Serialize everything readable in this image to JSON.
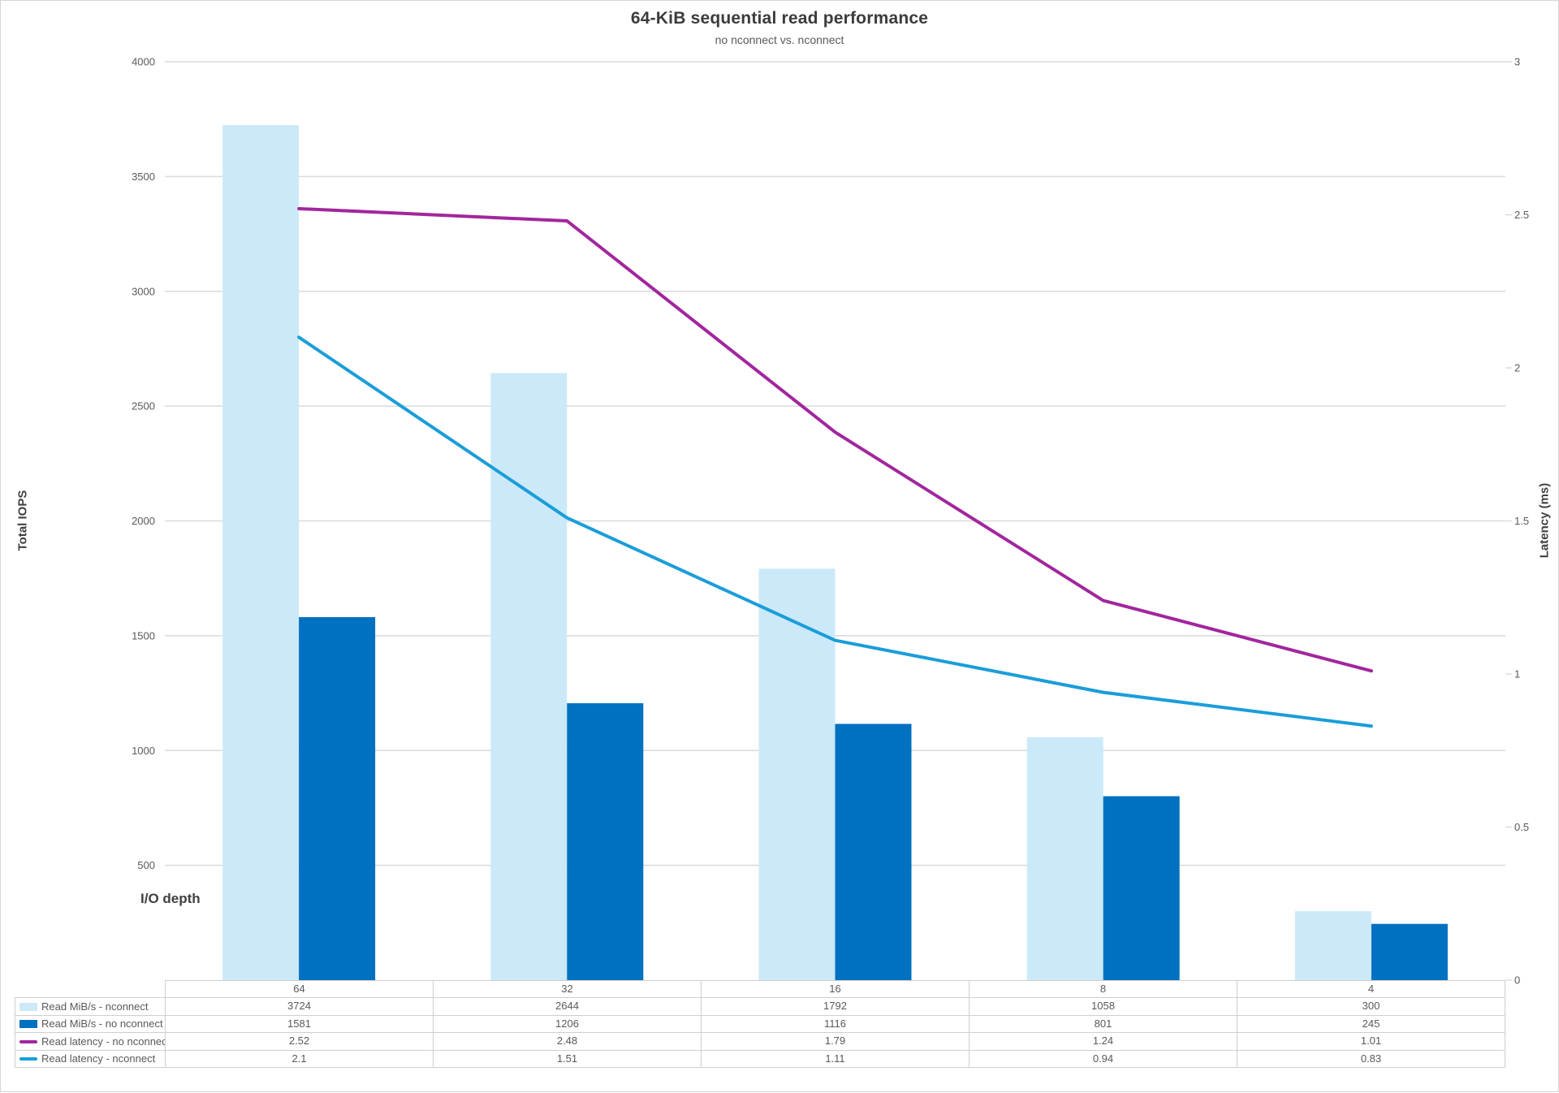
{
  "chart_data": {
    "type": "bar+line-combo",
    "title": "64-KiB sequential read performance",
    "subtitle": "no nconnect vs. nconnect",
    "xlabel": "I/O depth",
    "ylabel_left": "Total IOPS",
    "ylabel_right": "Latency (ms)",
    "categories": [
      "64",
      "32",
      "16",
      "8",
      "4"
    ],
    "series": [
      {
        "name": "Read MiB/s - nconnect",
        "type": "bar",
        "axis": "left",
        "color": "#CBE9F9",
        "values": [
          3724,
          2644,
          1792,
          1058,
          300
        ]
      },
      {
        "name": "Read MiB/s - no nconnect",
        "type": "bar",
        "axis": "left",
        "color": "#0070C0",
        "values": [
          1581,
          1206,
          1116,
          801,
          245
        ]
      },
      {
        "name": "Read latency - no nconnect",
        "type": "line",
        "axis": "right",
        "color": "#A2269D",
        "values": [
          2.52,
          2.48,
          1.79,
          1.24,
          1.01
        ]
      },
      {
        "name": "Read latency - nconnect",
        "type": "line",
        "axis": "right",
        "color": "#1B9DD9",
        "values": [
          2.1,
          1.51,
          1.11,
          0.94,
          0.83
        ]
      }
    ],
    "left_ylim": [
      0,
      4000
    ],
    "right_ylim": [
      0,
      3
    ],
    "left_ticks": [
      4000,
      3500,
      3000,
      2500,
      2000,
      1500,
      1000,
      500
    ],
    "right_ticks": [
      3,
      2.5,
      2,
      1.5,
      1,
      0.5,
      0
    ],
    "grid": "horizontal",
    "legend_position": "table-bottom",
    "grid_color": "#dadada",
    "text_color": "#595959"
  }
}
